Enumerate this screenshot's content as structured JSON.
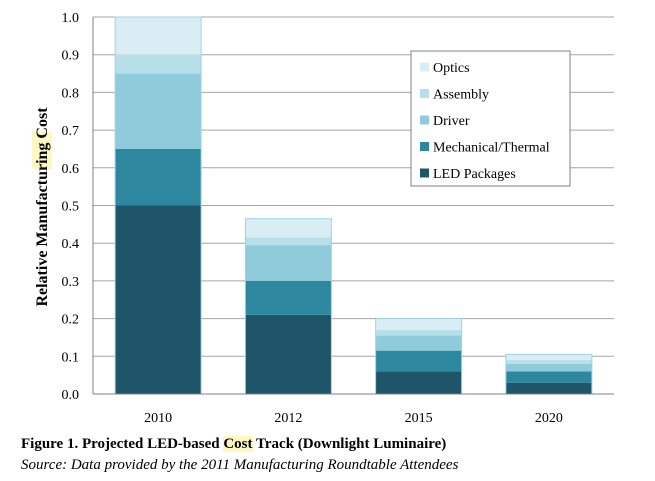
{
  "chart_data": {
    "type": "bar",
    "stacked": true,
    "categories": [
      "2010",
      "2012",
      "2015",
      "2020"
    ],
    "series": [
      {
        "name": "LED Packages",
        "color": "#1f5568",
        "values": [
          0.5,
          0.21,
          0.06,
          0.03
        ]
      },
      {
        "name": "Mechanical/Thermal",
        "color": "#2d879e",
        "values": [
          0.15,
          0.09,
          0.055,
          0.03
        ]
      },
      {
        "name": "Driver",
        "color": "#90cbdc",
        "values": [
          0.2,
          0.095,
          0.04,
          0.02
        ]
      },
      {
        "name": "Assembly",
        "color": "#b6dfe9",
        "values": [
          0.05,
          0.02,
          0.015,
          0.01
        ]
      },
      {
        "name": "Optics",
        "color": "#d9eef4",
        "values": [
          0.1,
          0.05,
          0.03,
          0.015
        ]
      }
    ],
    "ylabel_prefix": "Relative Manufacturing ",
    "ylabel_highlight": "Cost",
    "ylim": [
      0,
      1.0
    ],
    "yticks": [
      "0.0",
      "0.1",
      "0.2",
      "0.3",
      "0.4",
      "0.5",
      "0.6",
      "0.7",
      "0.8",
      "0.9",
      "1.0"
    ],
    "grid": true,
    "legend_position": "top-right",
    "legend_order": [
      "Optics",
      "Assembly",
      "Driver",
      "Mechanical/Thermal",
      "LED Packages"
    ]
  },
  "caption": {
    "prefix": "Figure 1.  Projected LED-based ",
    "highlight": "Cost",
    "suffix": " Track (Downlight Luminaire)"
  },
  "source": "Source: Data provided by the 2011 Manufacturing Roundtable Attendees"
}
